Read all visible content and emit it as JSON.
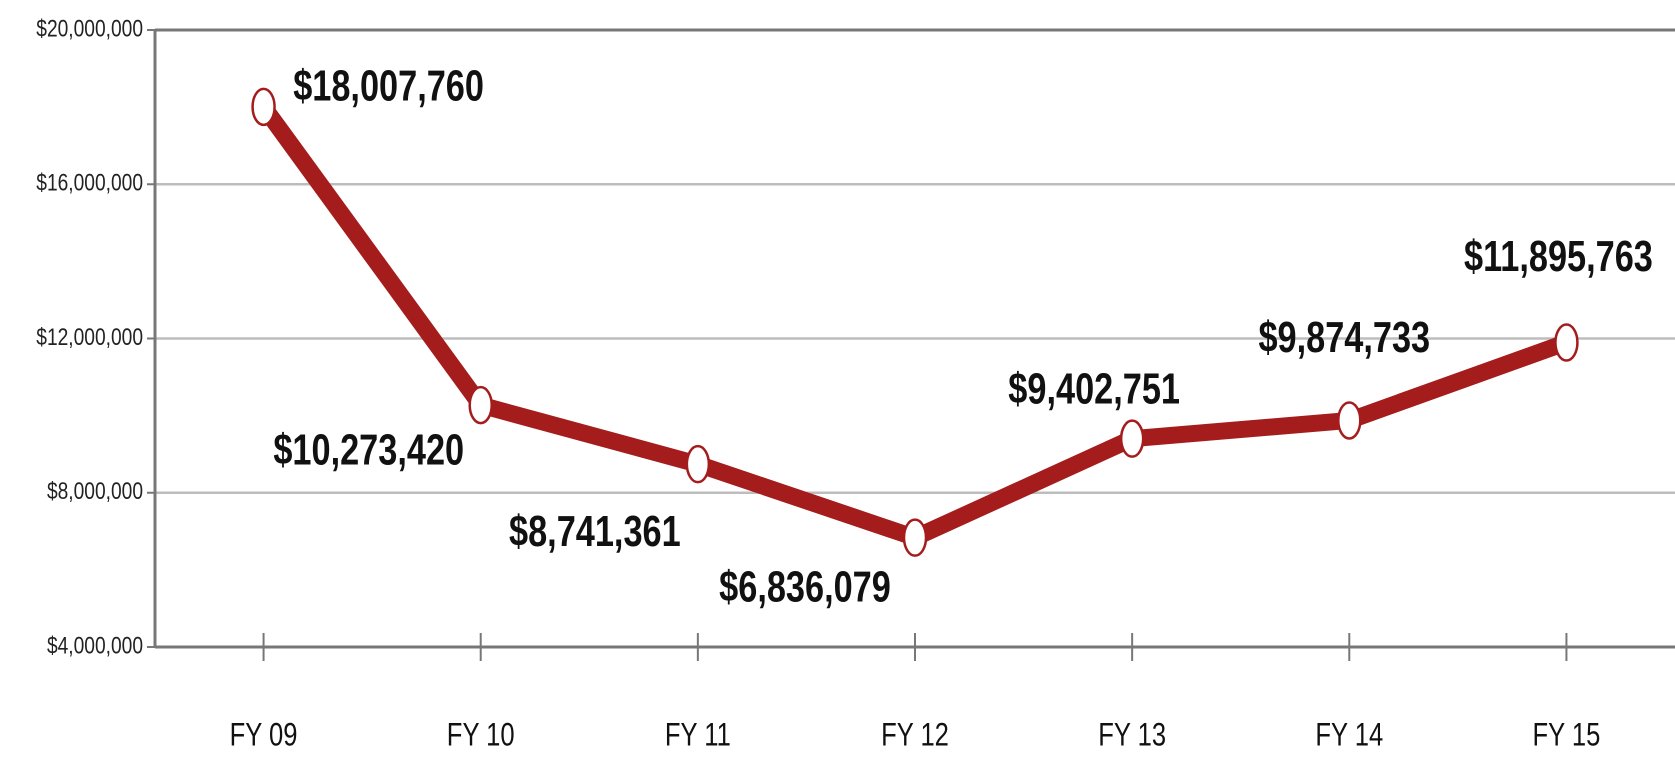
{
  "chart_data": {
    "type": "line",
    "categories": [
      "FY 09",
      "FY 10",
      "FY 11",
      "FY 12",
      "FY 13",
      "FY 14",
      "FY 15"
    ],
    "values": [
      18007760,
      10273420,
      8741361,
      6836079,
      9402751,
      9874733,
      11895763
    ],
    "value_labels": [
      "$18,007,760",
      "$10,273,420",
      "$8,741,361",
      "$6,836,079",
      "$9,402,751",
      "$9,874,733",
      "$11,895,763"
    ],
    "color": "#a51c1c",
    "ylim": [
      4000000,
      20000000
    ],
    "yticks": [
      {
        "value": 4000000,
        "label": "$4,000,000"
      },
      {
        "value": 8000000,
        "label": "$8,000,000"
      },
      {
        "value": 12000000,
        "label": "$12,000,000"
      },
      {
        "value": 16000000,
        "label": "$16,000,000"
      },
      {
        "value": 20000000,
        "label": "$20,000,000"
      }
    ],
    "grid": true
  }
}
